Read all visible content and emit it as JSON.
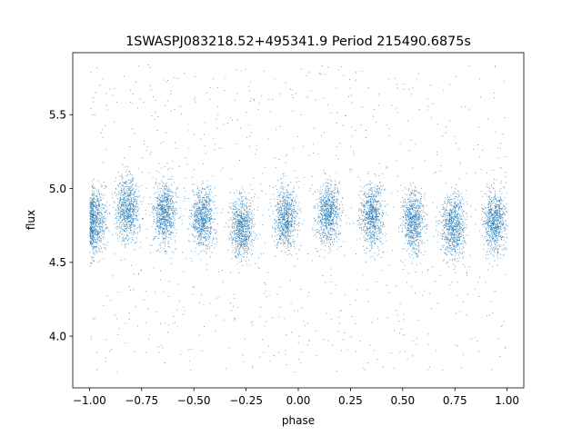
{
  "chart_data": {
    "type": "scatter",
    "title": "1SWASPJ083218.52+495341.9 Period 215490.6875s",
    "xlabel": "phase",
    "ylabel": "flux",
    "xlim": [
      -1.08,
      1.08
    ],
    "ylim": [
      3.65,
      5.92
    ],
    "xticks": [
      -1.0,
      -0.75,
      -0.5,
      -0.25,
      0.0,
      0.25,
      0.5,
      0.75,
      1.0
    ],
    "xtick_labels": [
      "−1.00",
      "−0.75",
      "−0.50",
      "−0.25",
      "0.00",
      "0.25",
      "0.50",
      "0.75",
      "1.00"
    ],
    "yticks": [
      4.0,
      4.5,
      5.0,
      5.5
    ],
    "ytick_labels": [
      "4.0",
      "4.5",
      "5.0",
      "5.5"
    ],
    "grid": false,
    "legend": "none",
    "marker_color": "#1f77b4",
    "series": [
      {
        "phase_range": [
          -1.0,
          1.0
        ],
        "flux_range": [
          3.76,
          5.84
        ],
        "clump_centers_phase": [
          -0.98,
          -0.82,
          -0.64,
          -0.46,
          -0.27,
          -0.06,
          0.14,
          0.35,
          0.55,
          0.74,
          0.94
        ],
        "clump_median_flux": [
          4.78,
          4.86,
          4.83,
          4.8,
          4.74,
          4.8,
          4.84,
          4.82,
          4.78,
          4.75,
          4.78
        ],
        "clump_scatter_flux": 0.17
      }
    ]
  }
}
